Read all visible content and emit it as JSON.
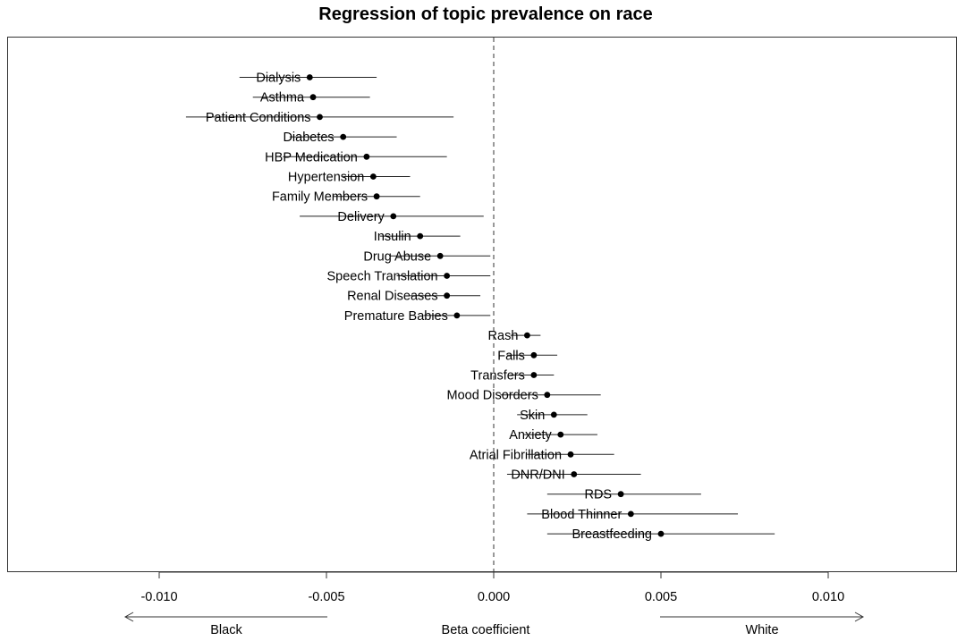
{
  "chart_data": {
    "type": "scatter",
    "subtype": "coefficient-plot-with-intervals",
    "title": "Regression of topic prevalence on race",
    "xlabel": "Beta coefficient",
    "xlim": [
      -0.0145,
      0.0139
    ],
    "x_ticks": [
      -0.01,
      -0.005,
      0.0,
      0.005,
      0.01
    ],
    "x_tick_labels": [
      "-0.010",
      "-0.005",
      "0.000",
      "0.005",
      "0.010"
    ],
    "reference_line": 0.0,
    "direction_labels": {
      "left": "Black",
      "right": "White"
    },
    "grid": false,
    "series": [
      {
        "points": [
          {
            "label": "Dialysis",
            "estimate": -0.0055,
            "lower": -0.0076,
            "upper": -0.0035
          },
          {
            "label": "Asthma",
            "estimate": -0.0054,
            "lower": -0.0072,
            "upper": -0.0037
          },
          {
            "label": "Patient Conditions",
            "estimate": -0.0052,
            "lower": -0.0092,
            "upper": -0.0012
          },
          {
            "label": "Diabetes",
            "estimate": -0.0045,
            "lower": -0.0061,
            "upper": -0.0029
          },
          {
            "label": "HBP Medication",
            "estimate": -0.0038,
            "lower": -0.0063,
            "upper": -0.0014
          },
          {
            "label": "Hypertension",
            "estimate": -0.0036,
            "lower": -0.0045,
            "upper": -0.0025
          },
          {
            "label": "Family Members",
            "estimate": -0.0035,
            "lower": -0.0048,
            "upper": -0.0022
          },
          {
            "label": "Delivery",
            "estimate": -0.003,
            "lower": -0.0058,
            "upper": -0.0003
          },
          {
            "label": "Insulin",
            "estimate": -0.0022,
            "lower": -0.0034,
            "upper": -0.001
          },
          {
            "label": "Drug Abuse",
            "estimate": -0.0016,
            "lower": -0.0031,
            "upper": -0.0001
          },
          {
            "label": "Speech Translation",
            "estimate": -0.0014,
            "lower": -0.0029,
            "upper": -0.0001
          },
          {
            "label": "Renal Diseases",
            "estimate": -0.0014,
            "lower": -0.0025,
            "upper": -0.0004
          },
          {
            "label": "Premature Babies",
            "estimate": -0.0011,
            "lower": -0.0021,
            "upper": -0.0001
          },
          {
            "label": "Rash",
            "estimate": 0.001,
            "lower": 0.0005,
            "upper": 0.0014
          },
          {
            "label": "Falls",
            "estimate": 0.0012,
            "lower": 0.0004,
            "upper": 0.0019
          },
          {
            "label": "Transfers",
            "estimate": 0.0012,
            "lower": 0.0005,
            "upper": 0.0018
          },
          {
            "label": "Mood Disorders",
            "estimate": 0.0016,
            "lower": 0.0002,
            "upper": 0.0032
          },
          {
            "label": "Skin",
            "estimate": 0.0018,
            "lower": 0.0007,
            "upper": 0.0028
          },
          {
            "label": "Anxiety",
            "estimate": 0.002,
            "lower": 0.0009,
            "upper": 0.0031
          },
          {
            "label": "Atrial Fibrillation",
            "estimate": 0.0023,
            "lower": 0.001,
            "upper": 0.0036
          },
          {
            "label": "DNR/DNI",
            "estimate": 0.0024,
            "lower": 0.0004,
            "upper": 0.0044
          },
          {
            "label": "RDS",
            "estimate": 0.0038,
            "lower": 0.0016,
            "upper": 0.0062
          },
          {
            "label": "Blood Thinner",
            "estimate": 0.0041,
            "lower": 0.001,
            "upper": 0.0073
          },
          {
            "label": "Breastfeeding",
            "estimate": 0.005,
            "lower": 0.0016,
            "upper": 0.0084
          }
        ]
      }
    ]
  }
}
